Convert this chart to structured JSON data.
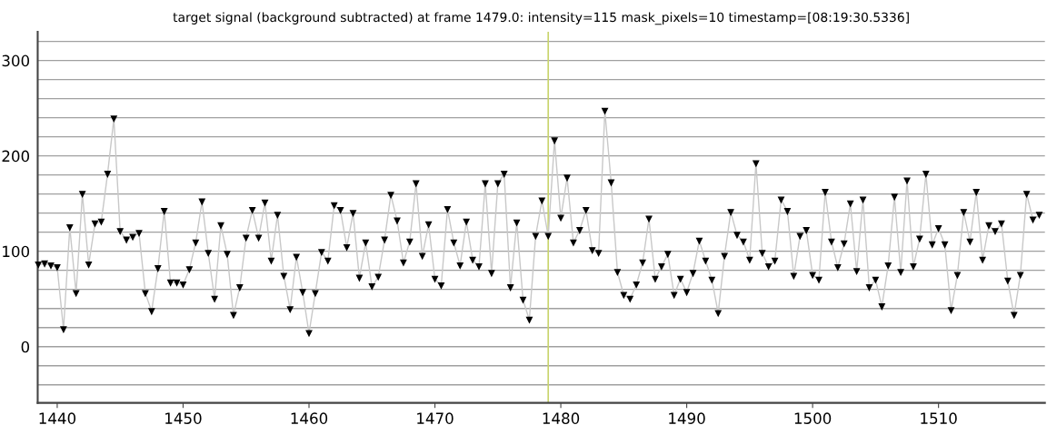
{
  "chart_data": {
    "type": "line",
    "title": "target signal (background subtracted) at frame 1479.0: intensity=115 mask_pixels=10 timestamp=[08:19:30.5336]",
    "x": [
      1438.5,
      1439,
      1439.5,
      1440,
      1440.5,
      1441,
      1441.5,
      1442,
      1442.5,
      1443,
      1443.5,
      1444,
      1444.5,
      1445,
      1445.5,
      1446,
      1446.5,
      1447,
      1447.5,
      1448,
      1448.5,
      1449,
      1449.5,
      1450,
      1450.5,
      1451,
      1451.5,
      1452,
      1452.5,
      1453,
      1453.5,
      1454,
      1454.5,
      1455,
      1455.5,
      1456,
      1456.5,
      1457,
      1457.5,
      1458,
      1458.5,
      1459,
      1459.5,
      1460,
      1460.5,
      1461,
      1461.5,
      1462,
      1462.5,
      1463,
      1463.5,
      1464,
      1464.5,
      1465,
      1465.5,
      1466,
      1466.5,
      1467,
      1467.5,
      1468,
      1468.5,
      1469,
      1469.5,
      1470,
      1470.5,
      1471,
      1471.5,
      1472,
      1472.5,
      1473,
      1473.5,
      1474,
      1474.5,
      1475,
      1475.5,
      1476,
      1476.5,
      1477,
      1477.5,
      1478,
      1478.5,
      1479,
      1479.5,
      1480,
      1480.5,
      1481,
      1481.5,
      1482,
      1482.5,
      1483,
      1483.5,
      1484,
      1484.5,
      1485,
      1485.5,
      1486,
      1486.5,
      1487,
      1487.5,
      1488,
      1488.5,
      1489,
      1489.5,
      1490,
      1490.5,
      1491,
      1491.5,
      1492,
      1492.5,
      1493,
      1493.5,
      1494,
      1494.5,
      1495,
      1495.5,
      1496,
      1496.5,
      1497,
      1497.5,
      1498,
      1498.5,
      1499,
      1499.5,
      1500,
      1500.5,
      1501,
      1501.5,
      1502,
      1502.5,
      1503,
      1503.5,
      1504,
      1504.5,
      1505,
      1505.5,
      1506,
      1506.5,
      1507,
      1507.5,
      1508,
      1508.5,
      1509,
      1509.5,
      1510,
      1510.5,
      1511,
      1511.5,
      1512,
      1512.5,
      1513,
      1513.5,
      1514,
      1514.5,
      1515,
      1515.5,
      1516,
      1516.5,
      1517,
      1517.5,
      1518
    ],
    "series": [
      {
        "color": "#c8c8c8",
        "values": [
          86,
          87,
          85,
          83,
          18,
          125,
          56,
          160,
          86,
          129,
          131,
          181,
          239,
          121,
          112,
          115,
          119,
          56,
          37,
          82,
          142,
          67,
          67,
          65,
          81,
          109,
          152,
          98,
          50,
          127,
          97,
          33,
          62,
          114,
          143,
          114,
          151,
          90,
          138,
          74,
          39,
          94,
          57,
          14,
          56,
          99,
          90,
          148,
          143,
          104,
          140,
          72,
          109,
          63,
          73,
          112,
          159,
          132,
          88,
          110,
          171,
          95,
          128,
          71,
          64,
          144,
          109,
          85,
          131,
          91,
          84,
          171,
          77,
          171,
          181,
          62,
          130,
          49,
          28,
          116,
          153,
          116,
          216,
          135,
          177,
          109,
          122,
          143,
          101,
          98,
          247,
          172,
          78,
          54,
          50,
          65,
          88,
          134,
          71,
          84,
          97,
          54,
          71,
          57,
          77,
          111,
          90,
          70,
          35,
          95,
          141,
          117,
          110,
          91,
          192,
          98,
          84,
          90,
          154,
          142,
          74,
          116,
          122,
          75,
          70,
          162,
          110,
          83,
          108,
          150,
          79,
          154,
          62,
          70,
          42,
          85,
          157,
          78,
          174,
          84,
          113,
          181,
          107,
          124,
          107,
          38,
          75,
          141,
          110,
          162,
          91,
          127,
          121,
          129,
          69,
          33,
          75,
          160,
          133,
          138
        ]
      }
    ],
    "xlim": [
      1438.45,
      1518.45
    ],
    "xticks": [
      1440,
      1450,
      1460,
      1470,
      1480,
      1490,
      1500,
      1510
    ],
    "ylim": [
      -59,
      330
    ],
    "yticks": [
      {
        "value": -40,
        "label": null
      },
      {
        "value": -20,
        "label": null
      },
      0,
      {
        "value": 20,
        "label": null
      },
      {
        "value": 40,
        "label": null
      },
      {
        "value": 60,
        "label": null
      },
      {
        "value": 80,
        "label": null
      },
      100,
      {
        "value": 120,
        "label": null
      },
      {
        "value": 140,
        "label": null
      },
      {
        "value": 160,
        "label": null
      },
      {
        "value": 180,
        "label": null
      },
      200,
      {
        "value": 220,
        "label": null
      },
      {
        "value": 240,
        "label": null
      },
      {
        "value": 260,
        "label": null
      },
      {
        "value": 280,
        "label": null
      },
      300,
      {
        "value": 320,
        "label": null
      }
    ],
    "grid": "y",
    "marker": "triangle",
    "ref_lines": [
      {
        "axis": "x",
        "value": 1479,
        "color": "#c9d46c"
      }
    ]
  }
}
